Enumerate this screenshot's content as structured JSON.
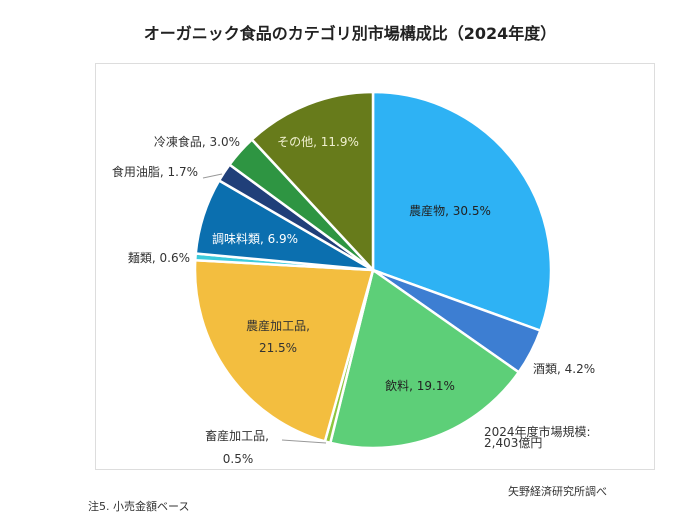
{
  "chart_data": {
    "type": "pie",
    "title": "オーガニック食品のカテゴリ別市場構成比（2024年度）",
    "start": "top",
    "direction": "clockwise",
    "slices": [
      {
        "name": "農産物",
        "value": 30.5,
        "label": "農産物, 30.5%",
        "color": "#2EB2F4"
      },
      {
        "name": "酒類",
        "value": 4.2,
        "label": "酒類, 4.2%",
        "color": "#3D7ED2"
      },
      {
        "name": "飲料",
        "value": 19.1,
        "label": "飲料, 19.1%",
        "color": "#5DCF78"
      },
      {
        "name": "畜産加工品",
        "value": 0.5,
        "label": "畜産加工品,",
        "label2": "0.5%",
        "color": "#8DC63F"
      },
      {
        "name": "農産加工品",
        "value": 21.5,
        "label": "農産加工品,",
        "label2": "21.5%",
        "color": "#F3BE3F"
      },
      {
        "name": "麺類",
        "value": 0.6,
        "label": "麺類, 0.6%",
        "color": "#3CCBDB"
      },
      {
        "name": "調味料類",
        "value": 6.9,
        "label": "調味料類, 6.9%",
        "color": "#0B6FAF"
      },
      {
        "name": "食用油脂",
        "value": 1.7,
        "label": "食用油脂, 1.7%",
        "color": "#203F79"
      },
      {
        "name": "冷凍食品",
        "value": 3.0,
        "label": "冷凍食品, 3.0%",
        "color": "#2E9542"
      },
      {
        "name": "その他",
        "value": 11.9,
        "label": "その他, 11.9%",
        "color": "#677B1B"
      }
    ],
    "annotation": [
      "2024年度市場規模:",
      "2,403億円"
    ]
  },
  "note": "注5. 小売金額ベース",
  "source": "矢野経済研究所調べ"
}
